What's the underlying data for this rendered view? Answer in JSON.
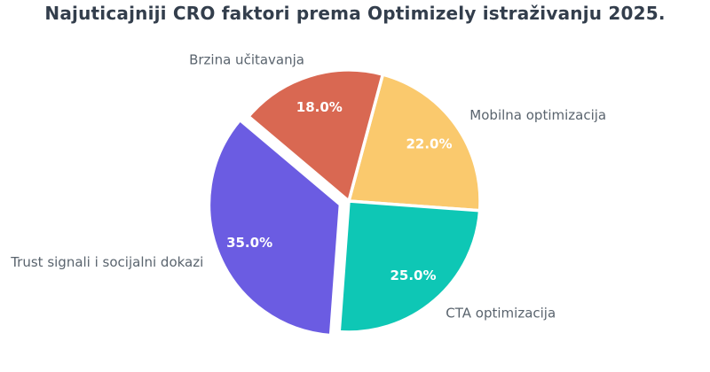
{
  "page": {
    "background": "#FFFFFF"
  },
  "chart_data": {
    "type": "pie",
    "title": "Najuticajniji CRO faktori prema Optimizely istraživanju 2025.",
    "start_angle_deg": 75,
    "direction": "clockwise",
    "legend": "none",
    "slices": [
      {
        "label": "Mobilna optimizacija",
        "value": 22.0,
        "pct_label": "22.0%",
        "color": "#FAC96D",
        "explode": 0
      },
      {
        "label": "CTA optimizacija",
        "value": 25.0,
        "pct_label": "25.0%",
        "color": "#0EC7B5",
        "explode": 0
      },
      {
        "label": "Trust signali i socijalni dokazi",
        "value": 35.0,
        "pct_label": "35.0%",
        "color": "#6B5CE2",
        "explode": 0.07
      },
      {
        "label": "Brzina učitavanja",
        "value": 18.0,
        "pct_label": "18.0%",
        "color": "#D96852",
        "explode": 0
      }
    ],
    "styles": {
      "title_color": "#333E4C",
      "category_label_color": "#5A646E",
      "percent_label_color": "#FFFFFF",
      "wedge_edge_color": "#FFFFFF"
    }
  }
}
